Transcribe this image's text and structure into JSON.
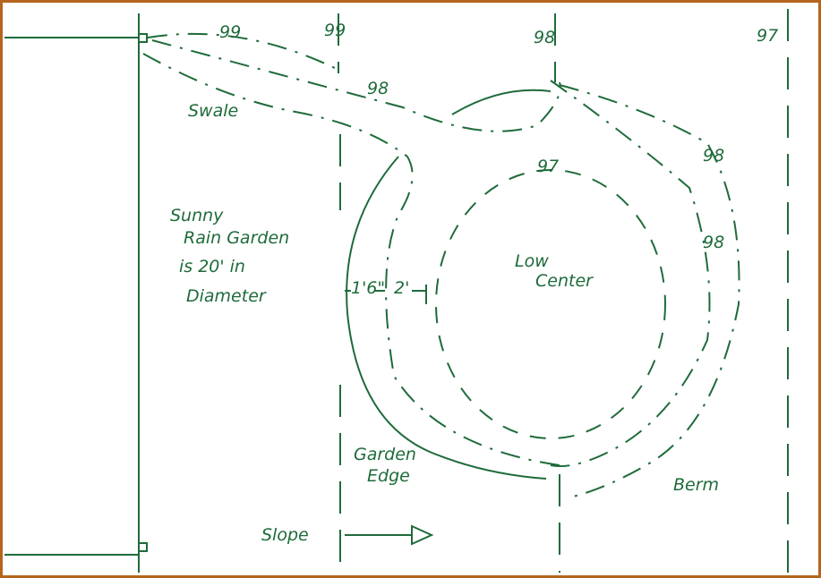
{
  "contours": {
    "top_99_left": "99",
    "top_99_right": "99",
    "top_98": "98",
    "top_97": "97",
    "swale_98": "98",
    "berm_98_upper": "98",
    "inner_97": "97",
    "berm_98_right": "98"
  },
  "labels": {
    "swale": "Swale",
    "note": [
      "Sunny",
      "Rain Garden",
      "is 20' in",
      "Diameter"
    ],
    "edge_width": "1'6\"",
    "berm_width": "2'",
    "center": [
      "Low",
      "Center"
    ],
    "garden_edge": [
      "Garden",
      "Edge"
    ],
    "berm": "Berm",
    "slope": "Slope"
  }
}
